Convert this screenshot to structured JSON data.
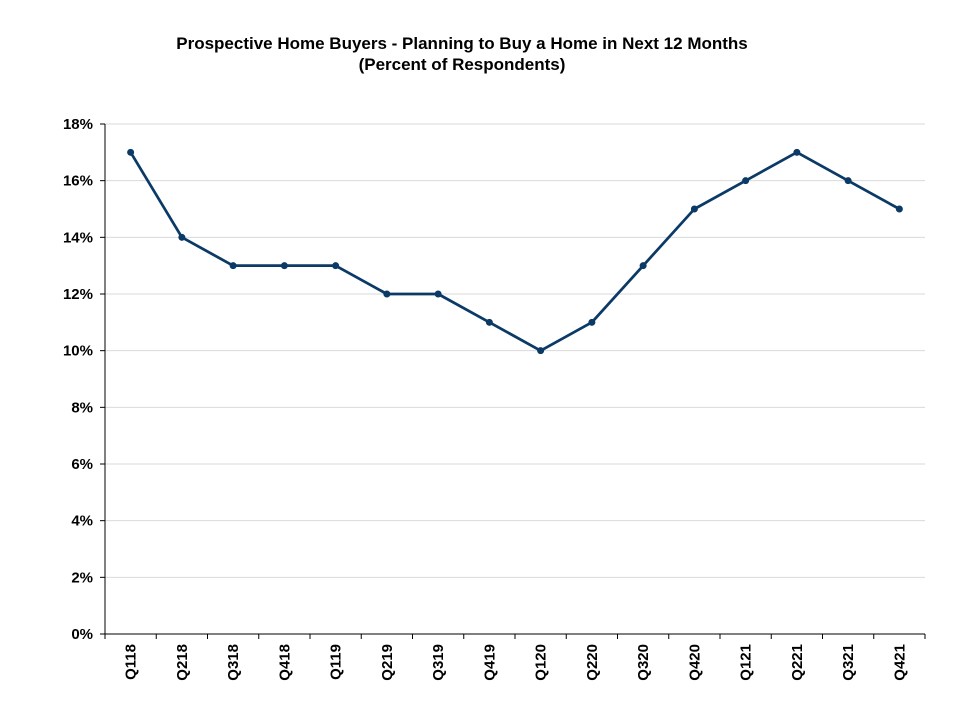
{
  "chart_data": {
    "type": "line",
    "title": "Prospective Home Buyers  - Planning to Buy a Home in Next 12 Months",
    "subtitle": "(Percent of Respondents)",
    "xlabel": "",
    "ylabel": "",
    "categories": [
      "Q118",
      "Q218",
      "Q318",
      "Q418",
      "Q119",
      "Q219",
      "Q319",
      "Q419",
      "Q120",
      "Q220",
      "Q320",
      "Q420",
      "Q121",
      "Q221",
      "Q321",
      "Q421"
    ],
    "series": [
      {
        "values": [
          17,
          14,
          13,
          13,
          13,
          12,
          12,
          11,
          10,
          11,
          13,
          15,
          16,
          17,
          16,
          15
        ]
      }
    ],
    "ylim": [
      0,
      18
    ],
    "ytick_step": 2,
    "ytick_labels": [
      "0%",
      "2%",
      "4%",
      "6%",
      "8%",
      "10%",
      "12%",
      "14%",
      "16%",
      "18%"
    ],
    "grid": "horizontal",
    "legend": "none",
    "line_color": "#0b3a66",
    "grid_color": "#d9d9d9"
  }
}
